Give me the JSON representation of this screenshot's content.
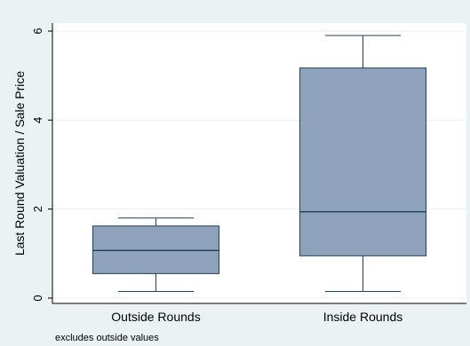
{
  "chart_data": {
    "type": "box",
    "title": "",
    "xlabel": "",
    "ylabel": "Last Round Valuation / Sale Price",
    "ylim": [
      -0.12,
      6.18
    ],
    "yticks": [
      0,
      2,
      4,
      6
    ],
    "grid": "horizontal",
    "legend": "none",
    "categories": [
      "Outside Rounds",
      "Inside Rounds"
    ],
    "series": [
      {
        "boxes": [
          {
            "category": "Outside Rounds",
            "whisker_low": 0.15,
            "q1": 0.55,
            "median": 1.07,
            "q3": 1.62,
            "whisker_high": 1.8
          },
          {
            "category": "Inside Rounds",
            "whisker_low": 0.15,
            "q1": 0.95,
            "median": 1.94,
            "q3": 5.17,
            "whisker_high": 5.9
          }
        ]
      }
    ],
    "note": "excludes outside values",
    "colors": {
      "box_fill": "#8ea3bb",
      "box_stroke": "#1f3f5b",
      "plot_bg": "#ffffff",
      "page_bg": "#eaf2f3",
      "grid": "#e8eef0"
    }
  }
}
